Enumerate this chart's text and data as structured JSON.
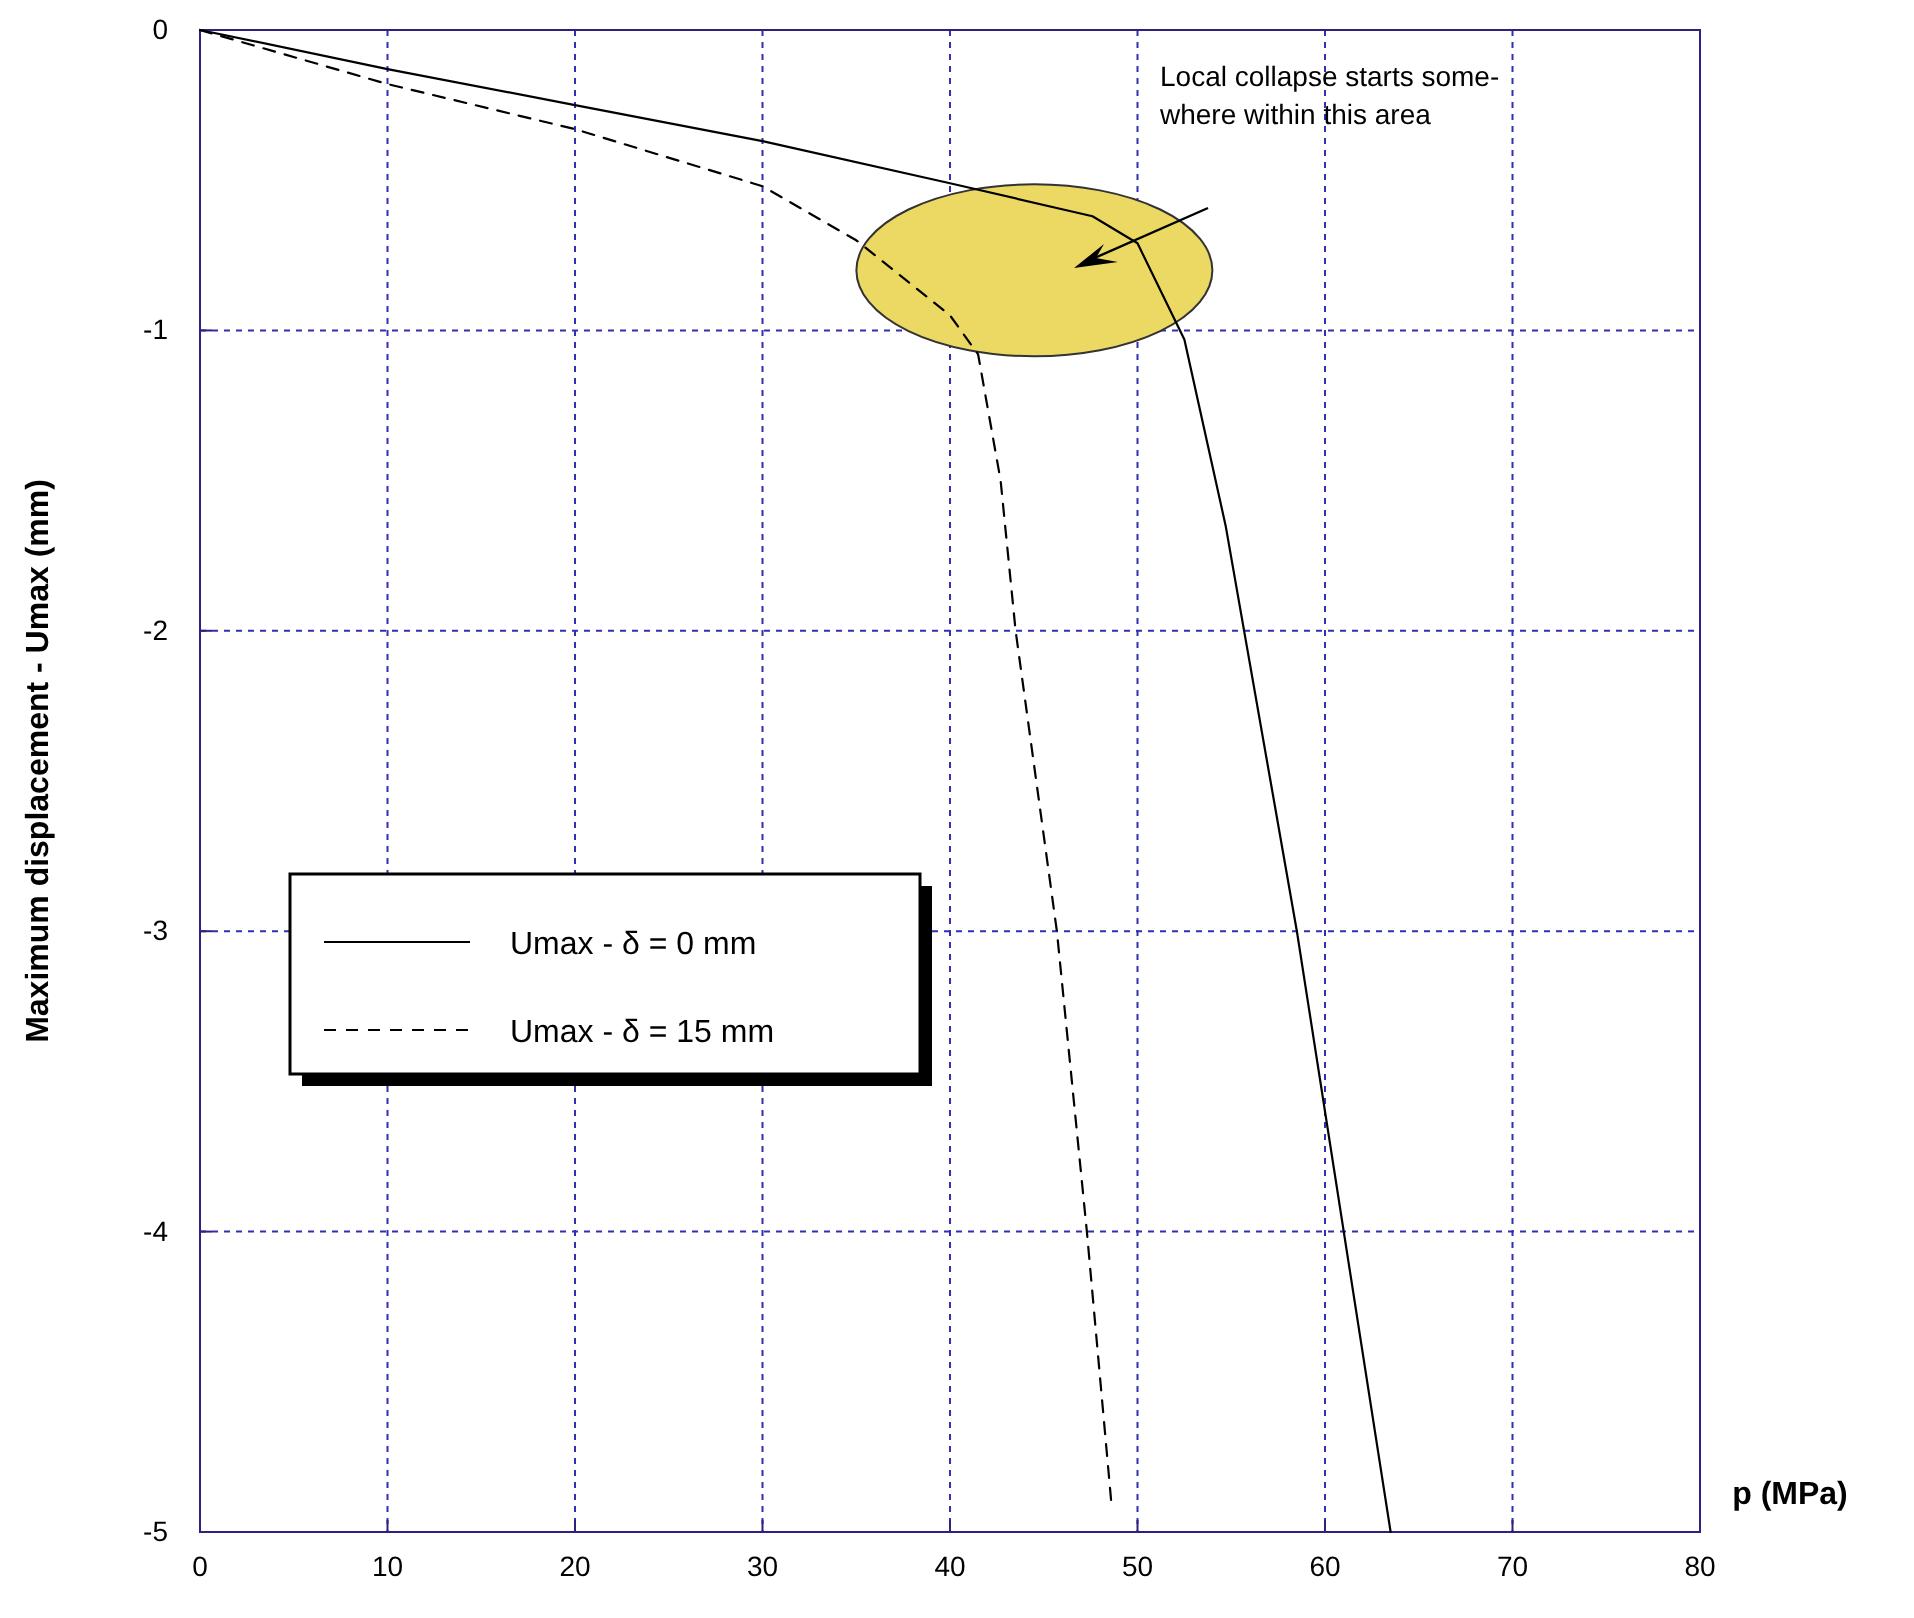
{
  "chart_data": {
    "type": "line",
    "xlabel": "p (MPa)",
    "ylabel": "Maximum displacement - Umax (mm)",
    "xlim": [
      0,
      80
    ],
    "xticks": [
      0,
      10,
      20,
      30,
      40,
      50,
      60,
      70,
      80
    ],
    "ylim": [
      -5,
      0
    ],
    "yticks": [
      -5,
      -4,
      -3,
      -2,
      -1,
      0
    ],
    "grid": true,
    "legend": "left",
    "marker": "none",
    "annotations": [
      "Local collapse starts some-\nwhere within this area"
    ],
    "series": [
      {
        "name": "Umax - δ = 0 mm",
        "color": "#000000",
        "line_style": "solid",
        "x": [
          0,
          10,
          20,
          30,
          40,
          47.6,
          50,
          52.5,
          54.7,
          58.5,
          63.5
        ],
        "values": [
          0,
          -0.13,
          -0.25,
          -0.37,
          -0.51,
          -0.62,
          -0.71,
          -1.03,
          -1.65,
          -3,
          -5
        ]
      },
      {
        "name": "Umax - δ = 15 mm",
        "color": "#000000",
        "line_style": "dashed",
        "x": [
          0,
          10,
          20,
          30,
          35,
          40,
          41.5,
          42.7,
          43.5,
          45.7,
          47.3,
          48.6
        ],
        "values": [
          0,
          -0.18,
          -0.33,
          -0.52,
          -0.7,
          -0.95,
          -1.08,
          -1.5,
          -2,
          -3,
          -4,
          -4.9
        ]
      }
    ]
  }
}
